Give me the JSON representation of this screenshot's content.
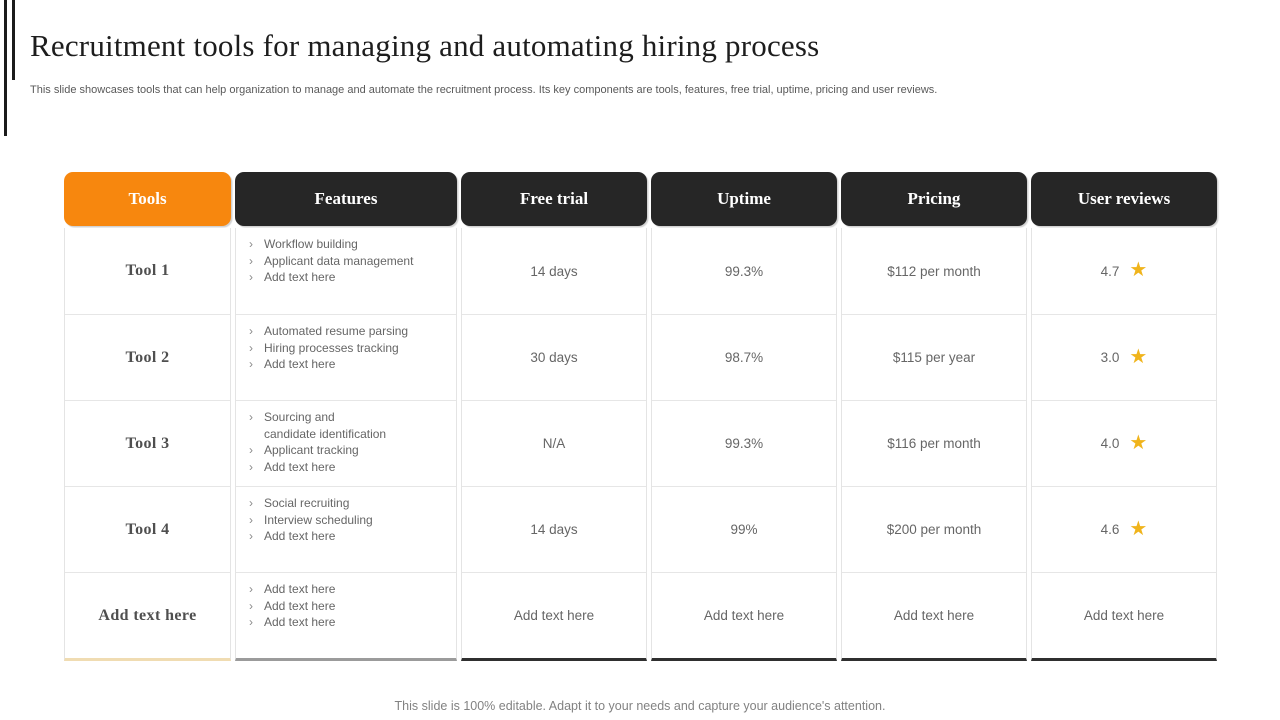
{
  "slide": {
    "title": "Recruitment tools for managing and automating hiring process",
    "subtitle": "This slide showcases tools that can help organization to manage and automate the recruitment process. Its key components are tools, features, free trial, uptime, pricing and user reviews.",
    "footer": "This slide is 100% editable. Adapt it to your needs and capture your audience's attention."
  },
  "colors": {
    "accent_orange": "#F7870E",
    "header_dark": "#262626",
    "star_gold": "#F0B41C"
  },
  "table": {
    "columns": [
      "Tools",
      "Features",
      "Free trial",
      "Uptime",
      "Pricing",
      "User reviews"
    ],
    "bullet_icon": "›",
    "star_icon": "★",
    "rows": [
      {
        "tool": "Tool 1",
        "features": [
          "Workflow building",
          "Applicant data management",
          "Add text here"
        ],
        "free_trial": "14 days",
        "uptime": "99.3%",
        "pricing": "$112 per month",
        "rating": "4.7"
      },
      {
        "tool": "Tool 2",
        "features": [
          "Automated resume parsing",
          "Hiring processes tracking",
          "Add text here"
        ],
        "free_trial": "30 days",
        "uptime": "98.7%",
        "pricing": "$115 per year",
        "rating": "3.0"
      },
      {
        "tool": "Tool 3",
        "features": [
          "Sourcing and\ncandidate identification",
          "Applicant tracking",
          "Add text here"
        ],
        "free_trial": "N/A",
        "uptime": "99.3%",
        "pricing": "$116 per month",
        "rating": "4.0"
      },
      {
        "tool": "Tool 4",
        "features": [
          "Social recruiting",
          "Interview scheduling",
          "Add text here"
        ],
        "free_trial": "14 days",
        "uptime": "99%",
        "pricing": "$200 per month",
        "rating": "4.6"
      },
      {
        "tool": "Add text here",
        "features": [
          "Add text here",
          "Add text here",
          "Add text here"
        ],
        "free_trial": "Add text here",
        "uptime": "Add text here",
        "pricing": "Add text here",
        "rating": "Add text here"
      }
    ]
  }
}
